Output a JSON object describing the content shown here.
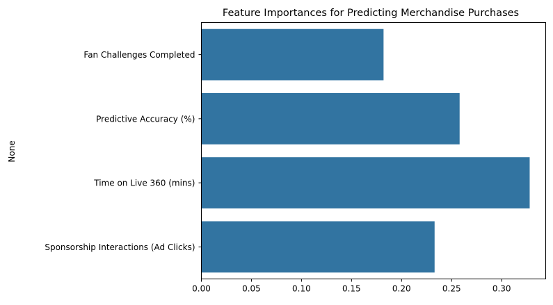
{
  "chart_data": {
    "type": "bar",
    "orientation": "horizontal",
    "title": "Feature Importances for Predicting Merchandise Purchases",
    "xlabel": "",
    "ylabel": "None",
    "categories": [
      "Fan Challenges Completed",
      "Predictive Accuracy (%)",
      "Time on Live 360 (mins)",
      "Sponsorship Interactions (Ad Clicks)"
    ],
    "values": [
      0.182,
      0.258,
      0.328,
      0.233
    ],
    "xlim": [
      0,
      0.344
    ],
    "xticks": [
      "0.00",
      "0.05",
      "0.10",
      "0.15",
      "0.20",
      "0.25",
      "0.30"
    ],
    "grid": false,
    "bar_color": "#3274a1"
  }
}
